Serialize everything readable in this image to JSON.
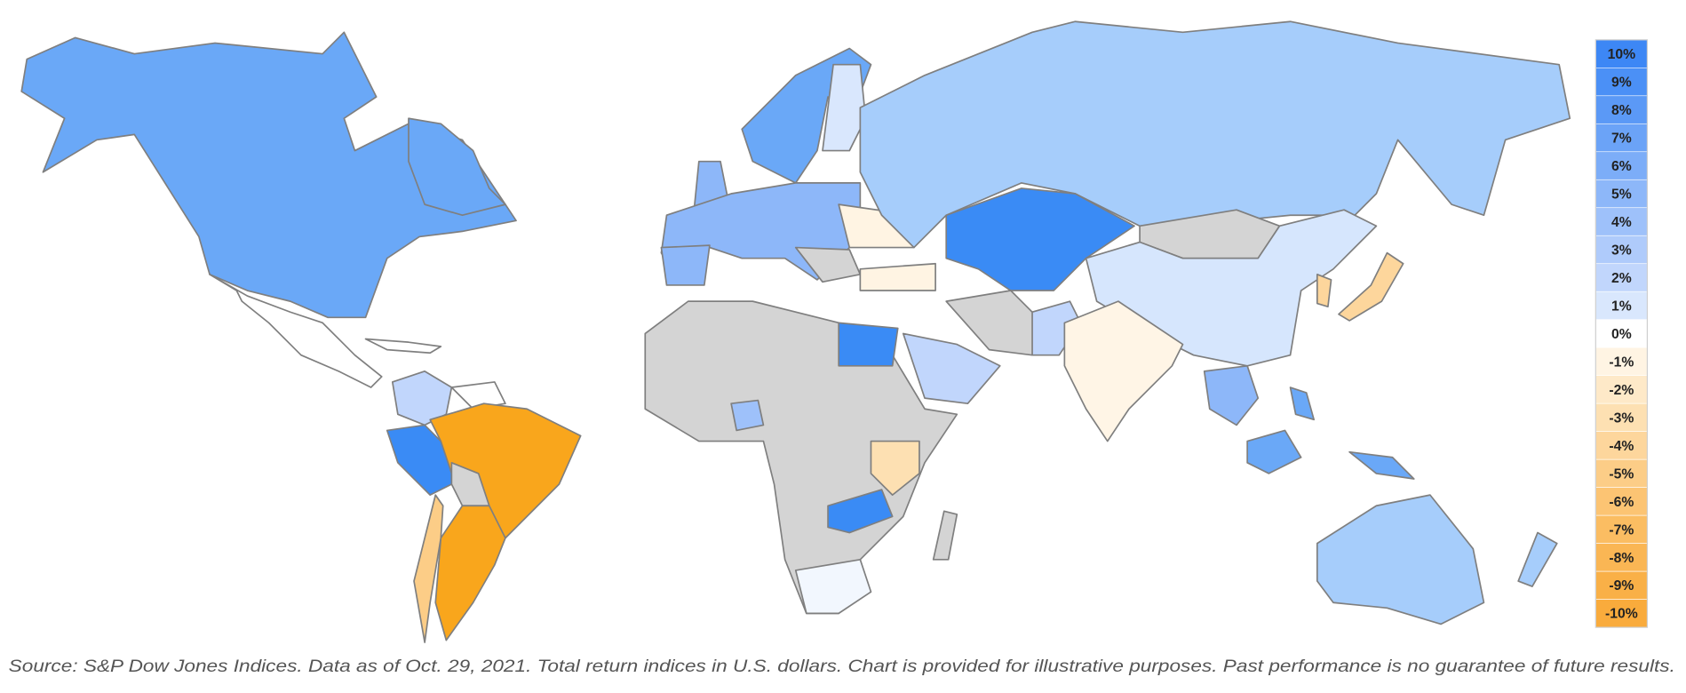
{
  "legend": {
    "items": [
      {
        "label": "10%",
        "color": "#3d87f5"
      },
      {
        "label": "9%",
        "color": "#4b90f6"
      },
      {
        "label": "8%",
        "color": "#5b99f6"
      },
      {
        "label": "7%",
        "color": "#6ba3f7"
      },
      {
        "label": "6%",
        "color": "#7cadf8"
      },
      {
        "label": "5%",
        "color": "#8db7f9"
      },
      {
        "label": "4%",
        "color": "#9ec1fa"
      },
      {
        "label": "3%",
        "color": "#afcbfb"
      },
      {
        "label": "2%",
        "color": "#c1d6fc"
      },
      {
        "label": "1%",
        "color": "#d9e7fd"
      },
      {
        "label": "0%",
        "color": "#ffffff"
      },
      {
        "label": "-1%",
        "color": "#fff4e3"
      },
      {
        "label": "-2%",
        "color": "#fee9c8"
      },
      {
        "label": "-3%",
        "color": "#fde0b2"
      },
      {
        "label": "-4%",
        "color": "#fdd69c"
      },
      {
        "label": "-5%",
        "color": "#fccd87"
      },
      {
        "label": "-6%",
        "color": "#fcc473"
      },
      {
        "label": "-7%",
        "color": "#fbbd62"
      },
      {
        "label": "-8%",
        "color": "#fab654"
      },
      {
        "label": "-9%",
        "color": "#f9b047"
      },
      {
        "label": "-10%",
        "color": "#f9ab3c"
      }
    ]
  },
  "footer": {
    "source": "Source: S&P Dow Jones Indices. Data as of Oct. 29, 2021. Total return indices in U.S. dollars.  Chart is provided for illustrative purposes. Past performance is no guarantee of future results."
  }
}
